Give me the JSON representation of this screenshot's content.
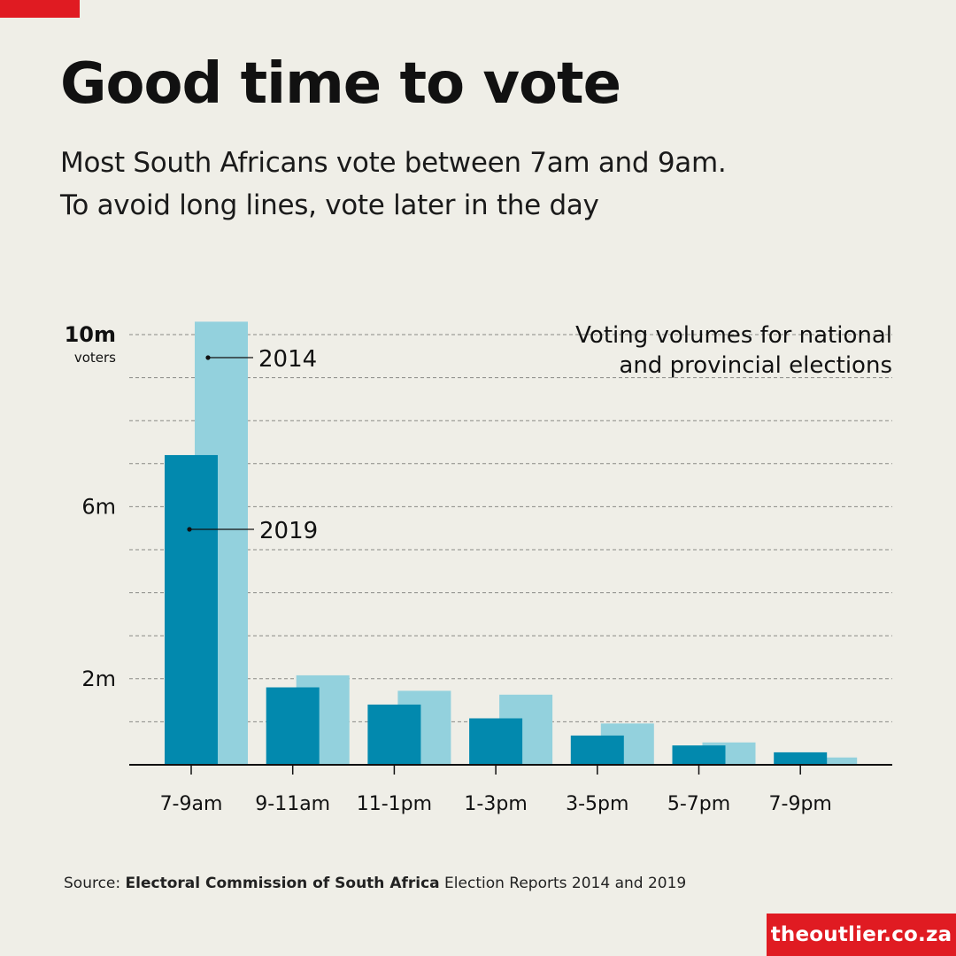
{
  "header": {
    "title": "Good time to vote",
    "subtitle_line1": "Most South Africans vote between 7am and 9am.",
    "subtitle_line2": "To avoid long lines, vote later in the day"
  },
  "source": {
    "prefix": "Source:",
    "org": "Electoral Commission of South Africa",
    "suffix": "Election Reports 2014 and 2019"
  },
  "site": "theoutlier.co.za",
  "colors": {
    "background": "#efeee7",
    "brand_red": "#e01b22",
    "series_2019": "#0289ae",
    "series_2014": "#93d1dd"
  },
  "chart_data": {
    "type": "bar",
    "annotation": [
      "Voting volumes for national",
      "and provincial elections"
    ],
    "categories": [
      "7-9am",
      "9-11am",
      "11-1pm",
      "1-3pm",
      "3-5pm",
      "5-7pm",
      "7-9pm"
    ],
    "series": [
      {
        "name": "2019",
        "values": [
          7.2,
          1.8,
          1.4,
          1.08,
          0.68,
          0.45,
          0.29
        ]
      },
      {
        "name": "2014",
        "values": [
          10.3,
          2.08,
          1.72,
          1.63,
          0.96,
          0.52,
          0.17
        ]
      }
    ],
    "y_ticks": [
      {
        "value": 10,
        "label": "10m",
        "unit": "voters"
      },
      {
        "value": 6,
        "label": "6m"
      },
      {
        "value": 2,
        "label": "2m"
      }
    ],
    "ylim": [
      0,
      10.3
    ],
    "grid": true,
    "gridline_step": 1,
    "legend": "direct labels on first group"
  }
}
